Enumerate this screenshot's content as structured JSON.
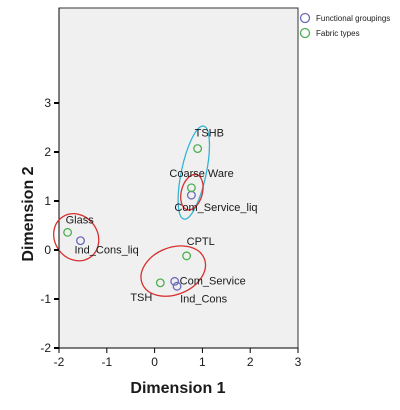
{
  "chart_data": {
    "type": "scatter",
    "xlabel": "Dimension 1",
    "ylabel": "Dimension 2",
    "xlim": [
      -2,
      3
    ],
    "ylim": [
      -2,
      4
    ],
    "xticks": [
      "-2",
      "-1",
      "0",
      "1",
      "2",
      "3"
    ],
    "yticks": [
      "-2",
      "-1",
      "0",
      "1",
      "2",
      "3"
    ],
    "grid": false,
    "legend_position": "top-right",
    "series": [
      {
        "name": "Functional groupings",
        "color": "#6a6ab8",
        "points": [
          {
            "label": "Com_Service_liq",
            "x": 0.77,
            "y": 1.12
          },
          {
            "label": "Ind_Cons_liq",
            "x": -1.55,
            "y": 0.19
          },
          {
            "label": "Com_Service",
            "x": 0.42,
            "y": -0.64
          },
          {
            "label": "Ind_Cons",
            "x": 0.47,
            "y": -0.74
          }
        ]
      },
      {
        "name": "Fabric types",
        "color": "#4caf50",
        "points": [
          {
            "label": "TSHB",
            "x": 0.9,
            "y": 2.07
          },
          {
            "label": "Coarse Ware",
            "x": 0.77,
            "y": 1.27
          },
          {
            "label": "Glass",
            "x": -1.82,
            "y": 0.36
          },
          {
            "label": "CPTL",
            "x": 0.67,
            "y": -0.12
          },
          {
            "label": "TSH",
            "x": 0.12,
            "y": -0.67
          }
        ]
      }
    ],
    "groups": [
      {
        "color": "#34b4d4",
        "cx": 0.82,
        "cy": 1.58,
        "rx": 0.26,
        "ry": 0.97,
        "rot": 12
      },
      {
        "color": "#d83030",
        "cx": 0.78,
        "cy": 1.18,
        "rx": 0.22,
        "ry": 0.37,
        "rot": 15
      },
      {
        "color": "#d83030",
        "cx": -1.64,
        "cy": 0.26,
        "rx": 0.45,
        "ry": 0.5,
        "rot": -35
      },
      {
        "color": "#d83030",
        "cx": 0.39,
        "cy": -0.43,
        "rx": 0.7,
        "ry": 0.48,
        "rot": -22
      }
    ]
  },
  "label_layout": {
    "TSHB": {
      "dx": -3,
      "dy": -12,
      "anchor": "start"
    },
    "Coarse Ware": {
      "dx": -22,
      "dy": -11,
      "anchor": "start"
    },
    "Com_Service_liq": {
      "dx": -17,
      "dy": 16,
      "anchor": "start"
    },
    "Glass": {
      "dx": -2,
      "dy": -9,
      "anchor": "start"
    },
    "Ind_Cons_liq": {
      "dx": -6,
      "dy": 13,
      "anchor": "start"
    },
    "CPTL": {
      "dx": 0,
      "dy": -11,
      "anchor": "start"
    },
    "Com_Service": {
      "dx": 5,
      "dy": 3,
      "anchor": "start"
    },
    "Ind_Cons": {
      "dx": 3,
      "dy": 16,
      "anchor": "start"
    },
    "TSH": {
      "dx": -8,
      "dy": 18,
      "anchor": "end"
    }
  }
}
